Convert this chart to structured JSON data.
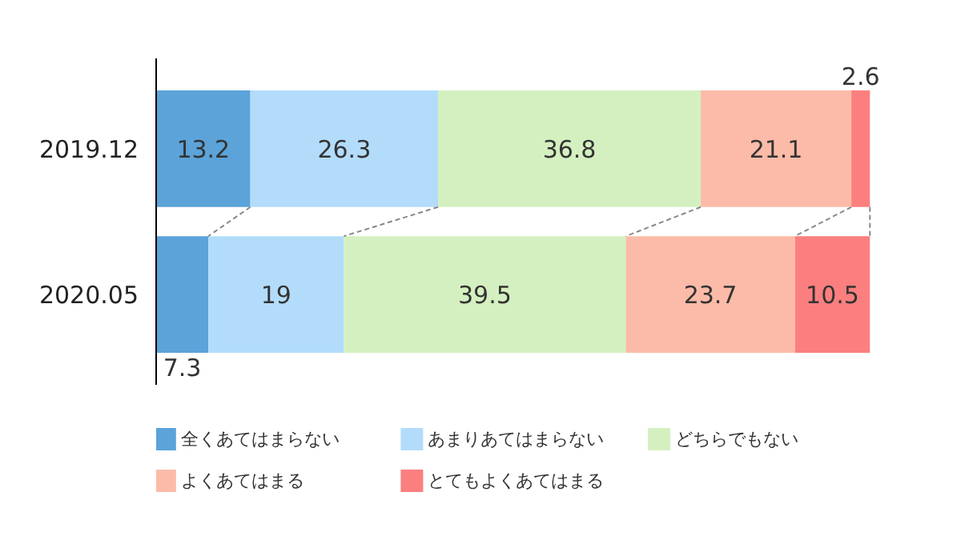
{
  "chart_data": {
    "type": "bar",
    "orientation": "horizontal",
    "stacked": true,
    "categories": [
      "2019.12",
      "2020.05"
    ],
    "series": [
      {
        "name": "全くあてはまらない",
        "color": "#5ba3d9",
        "values": [
          13.2,
          7.3
        ]
      },
      {
        "name": "あまりあてはまらない",
        "color": "#b3dcfb",
        "values": [
          26.3,
          19
        ]
      },
      {
        "name": "どちらでもない",
        "color": "#d4f0c0",
        "values": [
          36.8,
          39.5
        ]
      },
      {
        "name": "よくあてはまる",
        "color": "#fcbba8",
        "values": [
          21.1,
          23.7
        ]
      },
      {
        "name": "とてもよくあてはまる",
        "color": "#fb7f7f",
        "values": [
          2.6,
          10.5
        ]
      }
    ],
    "data_labels": true,
    "legend": "bottom",
    "grid": false
  }
}
